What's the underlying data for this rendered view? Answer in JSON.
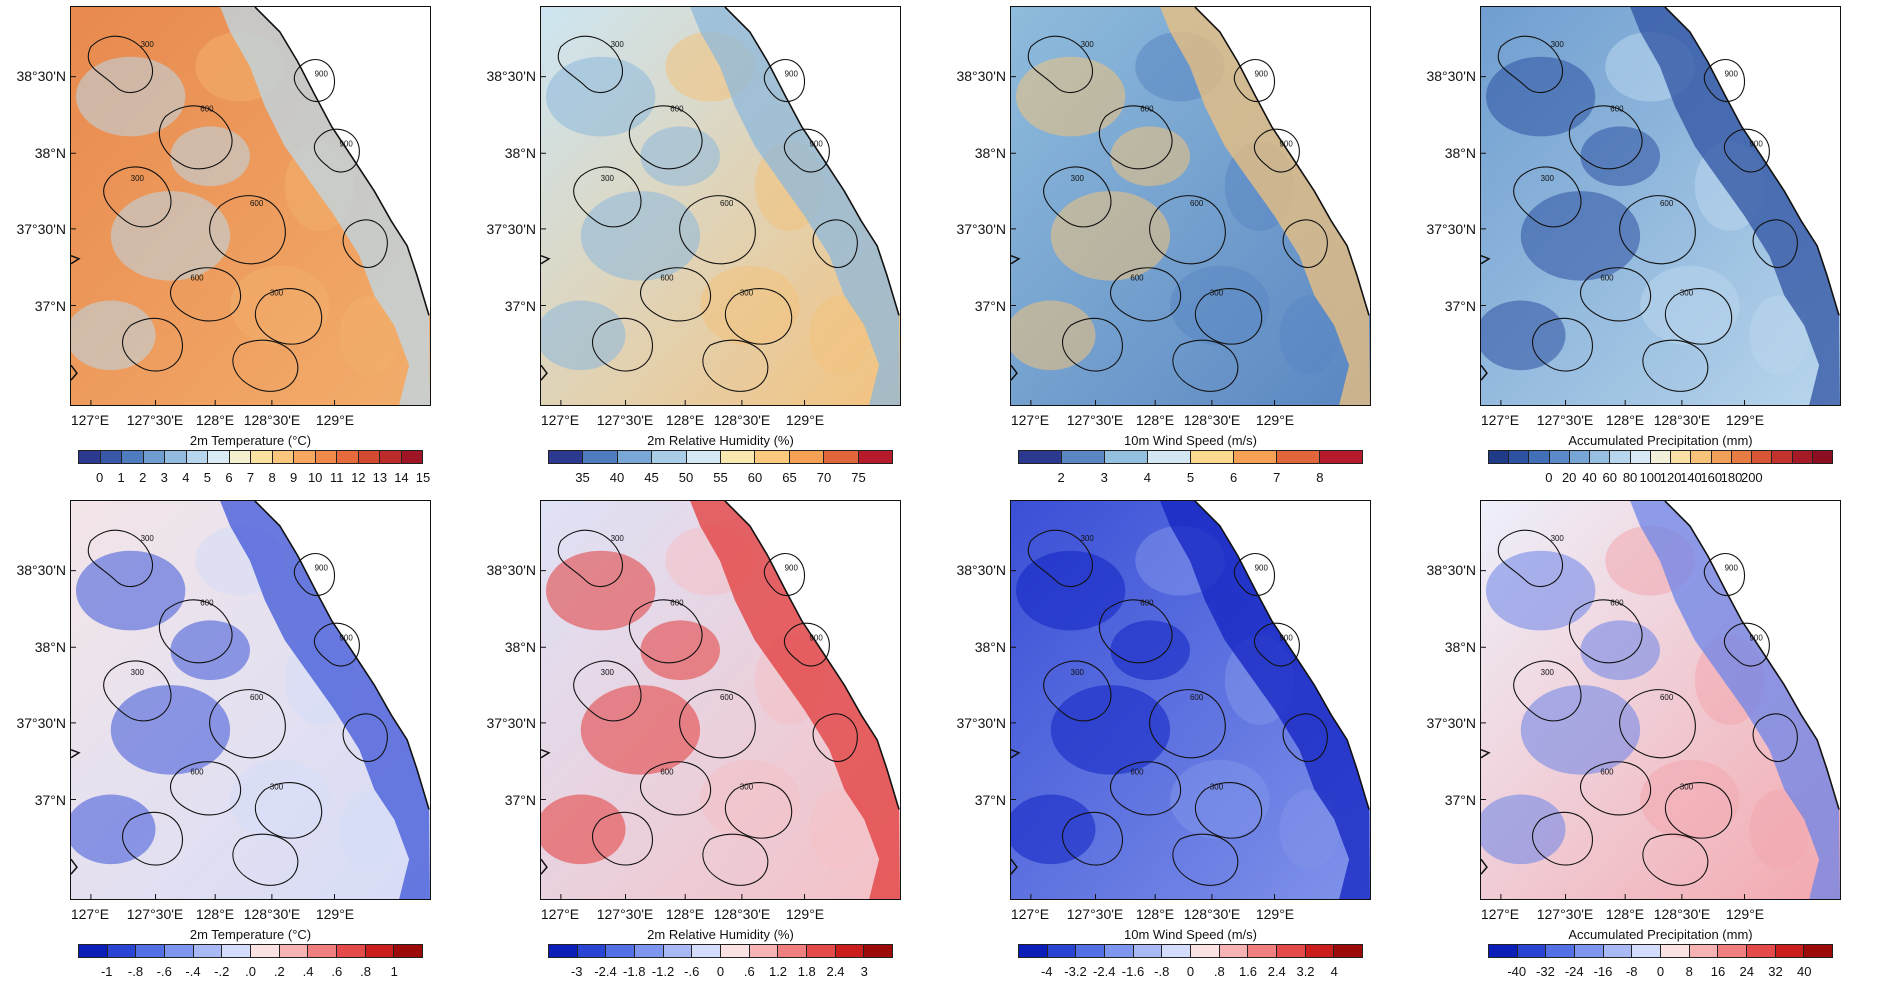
{
  "lat_labels": [
    "38°30'N",
    "38°N",
    "37°30'N",
    "37°N"
  ],
  "lon_labels": [
    "127°E",
    "127°30'E",
    "128°E",
    "128°30'E",
    "129°E"
  ],
  "contour_labels": [
    "300",
    "600",
    "900"
  ],
  "panels": [
    {
      "variable": "2m Temperature  (°C)",
      "row": "top",
      "colorbar_ticks": [
        "0",
        "1",
        "2",
        "3",
        "4",
        "5",
        "6",
        "7",
        "8",
        "9",
        "10",
        "11",
        "12",
        "13",
        "14",
        "15"
      ],
      "palette": [
        "#2b3a8f",
        "#3a58a8",
        "#4f7cbf",
        "#6f9dd0",
        "#93bbe0",
        "#b7d5ec",
        "#d9ebf5",
        "#f4f0cf",
        "#fbe19f",
        "#fbc77e",
        "#f7a760",
        "#f08a4b",
        "#e56a3c",
        "#d44a31",
        "#bd2b2a",
        "#a01526"
      ],
      "colors": {
        "base": "#e8894e",
        "patch": "#f3ae6c",
        "cool": "#bcd8ea"
      }
    },
    {
      "variable": "2m Relative Humidity  (%)",
      "row": "top",
      "colorbar_ticks": [
        "35",
        "40",
        "45",
        "50",
        "55",
        "60",
        "65",
        "70",
        "75"
      ],
      "palette": [
        "#2b3a8f",
        "#4f7cbf",
        "#7aa8d6",
        "#a9cde6",
        "#d4e9f3",
        "#f9e8b0",
        "#fbca7e",
        "#f4a055",
        "#e2663c",
        "#b71a2b"
      ],
      "colors": {
        "base": "#cde5f1",
        "patch": "#f3c27e",
        "cool": "#8db8dc"
      }
    },
    {
      "variable": "10m Wind Speed  (m/s)",
      "row": "top",
      "colorbar_ticks": [
        "2",
        "3",
        "4",
        "5",
        "6",
        "7",
        "8"
      ],
      "palette": [
        "#2b3a8f",
        "#5a86c2",
        "#94c0df",
        "#d3e8f2",
        "#fbd98e",
        "#f4a055",
        "#e2663c",
        "#b71a2b"
      ],
      "colors": {
        "base": "#8fbcdc",
        "patch": "#5a86c2",
        "cool": "#f0c27c"
      }
    },
    {
      "variable": "Accumulated Precipitation  (mm)",
      "row": "top",
      "colorbar_ticks": [
        "0",
        "20",
        "40",
        "60",
        "80",
        "100",
        "120",
        "140",
        "160",
        "180",
        "200"
      ],
      "palette": [
        "#1f3a86",
        "#2e52a2",
        "#416fb8",
        "#5a8ac8",
        "#77a6d6",
        "#96bfe2",
        "#b7d6ed",
        "#d7e9f4",
        "#f2f0d8",
        "#fbe0a6",
        "#f8c27a",
        "#f1a05a",
        "#e67c44",
        "#d75636",
        "#c1332c",
        "#a51a26",
        "#8b0f20"
      ],
      "colors": {
        "base": "#6f9ed0",
        "patch": "#b9d6ec",
        "cool": "#2e52a2"
      }
    },
    {
      "variable": "2m Temperature  (°C)",
      "row": "bottom",
      "colorbar_ticks": [
        "-1",
        "-.8",
        "-.6",
        "-.4",
        "-.2",
        ".0",
        ".2",
        ".4",
        ".6",
        ".8",
        "1"
      ],
      "palette": [
        "#0b1fb8",
        "#2a45d4",
        "#5370e4",
        "#7e96ee",
        "#a8b9f5",
        "#d3dcfb",
        "#fbe2e2",
        "#f7b3b3",
        "#f08080",
        "#e54a4a",
        "#cc1d1d",
        "#9c0a0a"
      ],
      "colors": {
        "base": "#f3e5e8",
        "patch": "#d6dcf8",
        "cool": "#3d55d8"
      }
    },
    {
      "variable": "2m Relative Humidity  (%)",
      "row": "bottom",
      "colorbar_ticks": [
        "-3",
        "-2.4",
        "-1.8",
        "-1.2",
        "-.6",
        "0",
        ".6",
        "1.2",
        "1.8",
        "2.4",
        "3"
      ],
      "palette": [
        "#0b1fb8",
        "#2a45d4",
        "#5370e4",
        "#7e96ee",
        "#a8b9f5",
        "#d3dcfb",
        "#fbe2e2",
        "#f7b3b3",
        "#f08080",
        "#e54a4a",
        "#cc1d1d",
        "#9c0a0a"
      ],
      "colors": {
        "base": "#dfe2f6",
        "patch": "#f4c1c6",
        "cool": "#e23a3a"
      }
    },
    {
      "variable": "10m Wind Speed  (m/s)",
      "row": "bottom",
      "colorbar_ticks": [
        "-4",
        "-3.2",
        "-2.4",
        "-1.6",
        "-.8",
        "0",
        ".8",
        "1.6",
        "2.4",
        "3.2",
        "4"
      ],
      "palette": [
        "#0b1fb8",
        "#2a45d4",
        "#5370e4",
        "#7e96ee",
        "#a8b9f5",
        "#d3dcfb",
        "#fbe2e2",
        "#f7b3b3",
        "#f08080",
        "#e54a4a",
        "#cc1d1d",
        "#9c0a0a"
      ],
      "colors": {
        "base": "#3a4fd6",
        "patch": "#8093ea",
        "cool": "#1122c2"
      }
    },
    {
      "variable": "Accumulated Precipitation  (mm)",
      "row": "bottom",
      "colorbar_ticks": [
        "-40",
        "-32",
        "-24",
        "-16",
        "-8",
        "0",
        "8",
        "16",
        "24",
        "32",
        "40"
      ],
      "palette": [
        "#0b1fb8",
        "#2a45d4",
        "#5370e4",
        "#7e96ee",
        "#a8b9f5",
        "#d3dcfb",
        "#fbe2e2",
        "#f7b3b3",
        "#f08080",
        "#e54a4a",
        "#cc1d1d",
        "#9c0a0a"
      ],
      "colors": {
        "base": "#eef0fb",
        "patch": "#f3a8ae",
        "cool": "#6c84e8"
      }
    }
  ]
}
